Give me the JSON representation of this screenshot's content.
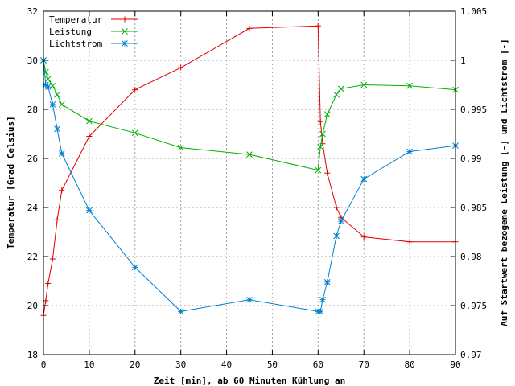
{
  "chart_data": {
    "type": "line",
    "xlabel": "Zeit [min], ab 60 Minuten Kühlung an",
    "ylabel": "Temperatur [Grad Celsius]",
    "y2label": "Auf Startwert bezogene Leistung [-] und Lichtstrom [-]",
    "xlim": [
      0,
      90
    ],
    "ylim": [
      18,
      32
    ],
    "y2lim": [
      0.97,
      1.005
    ],
    "x_ticks": [
      "0",
      "10",
      "20",
      "30",
      "40",
      "50",
      "60",
      "70",
      "80",
      "90"
    ],
    "y_ticks": [
      "18",
      "20",
      "22",
      "24",
      "26",
      "28",
      "30",
      "32"
    ],
    "y2_ticks": [
      "0.97",
      "0.975",
      "0.98",
      "0.985",
      "0.99",
      "0.995",
      "1",
      "1.005"
    ],
    "grid": true,
    "legend_position": "top-left",
    "series": [
      {
        "name": "Temperatur",
        "axis": "left",
        "color": "#e00000",
        "marker": "plus",
        "x": [
          0,
          0.5,
          1,
          2,
          3,
          4,
          10,
          20,
          30,
          45,
          60,
          60.5,
          61,
          62,
          64,
          65,
          70,
          80,
          90
        ],
        "y": [
          19.6,
          20.2,
          20.9,
          21.9,
          23.5,
          24.7,
          26.9,
          28.8,
          29.7,
          31.3,
          31.4,
          27.5,
          26.6,
          25.4,
          24.0,
          23.6,
          22.8,
          22.6,
          22.6
        ]
      },
      {
        "name": "Leistung",
        "axis": "right",
        "color": "#00b000",
        "marker": "x",
        "x": [
          0,
          0.5,
          1,
          2,
          3,
          4,
          10,
          20,
          30,
          45,
          60,
          60.5,
          61,
          62,
          64,
          65,
          70,
          80,
          90
        ],
        "y": [
          1.0,
          0.9988,
          0.9981,
          0.9974,
          0.9965,
          0.9955,
          0.9938,
          0.9926,
          0.9911,
          0.9904,
          0.9888,
          0.9912,
          0.9925,
          0.9945,
          0.9965,
          0.9971,
          0.9975,
          0.9974,
          0.997
        ]
      },
      {
        "name": "Lichtstrom",
        "axis": "right",
        "color": "#0080d0",
        "marker": "star",
        "x": [
          0,
          0.5,
          1,
          2,
          3,
          4,
          10,
          20,
          30,
          45,
          60,
          60.5,
          61,
          62,
          64,
          65,
          70,
          80,
          90
        ],
        "y": [
          1.0,
          0.9975,
          0.9973,
          0.9955,
          0.993,
          0.9905,
          0.9847,
          0.9789,
          0.9744,
          0.9756,
          0.9744,
          0.9744,
          0.9756,
          0.9774,
          0.9821,
          0.9836,
          0.9879,
          0.9907,
          0.9913
        ]
      }
    ]
  }
}
